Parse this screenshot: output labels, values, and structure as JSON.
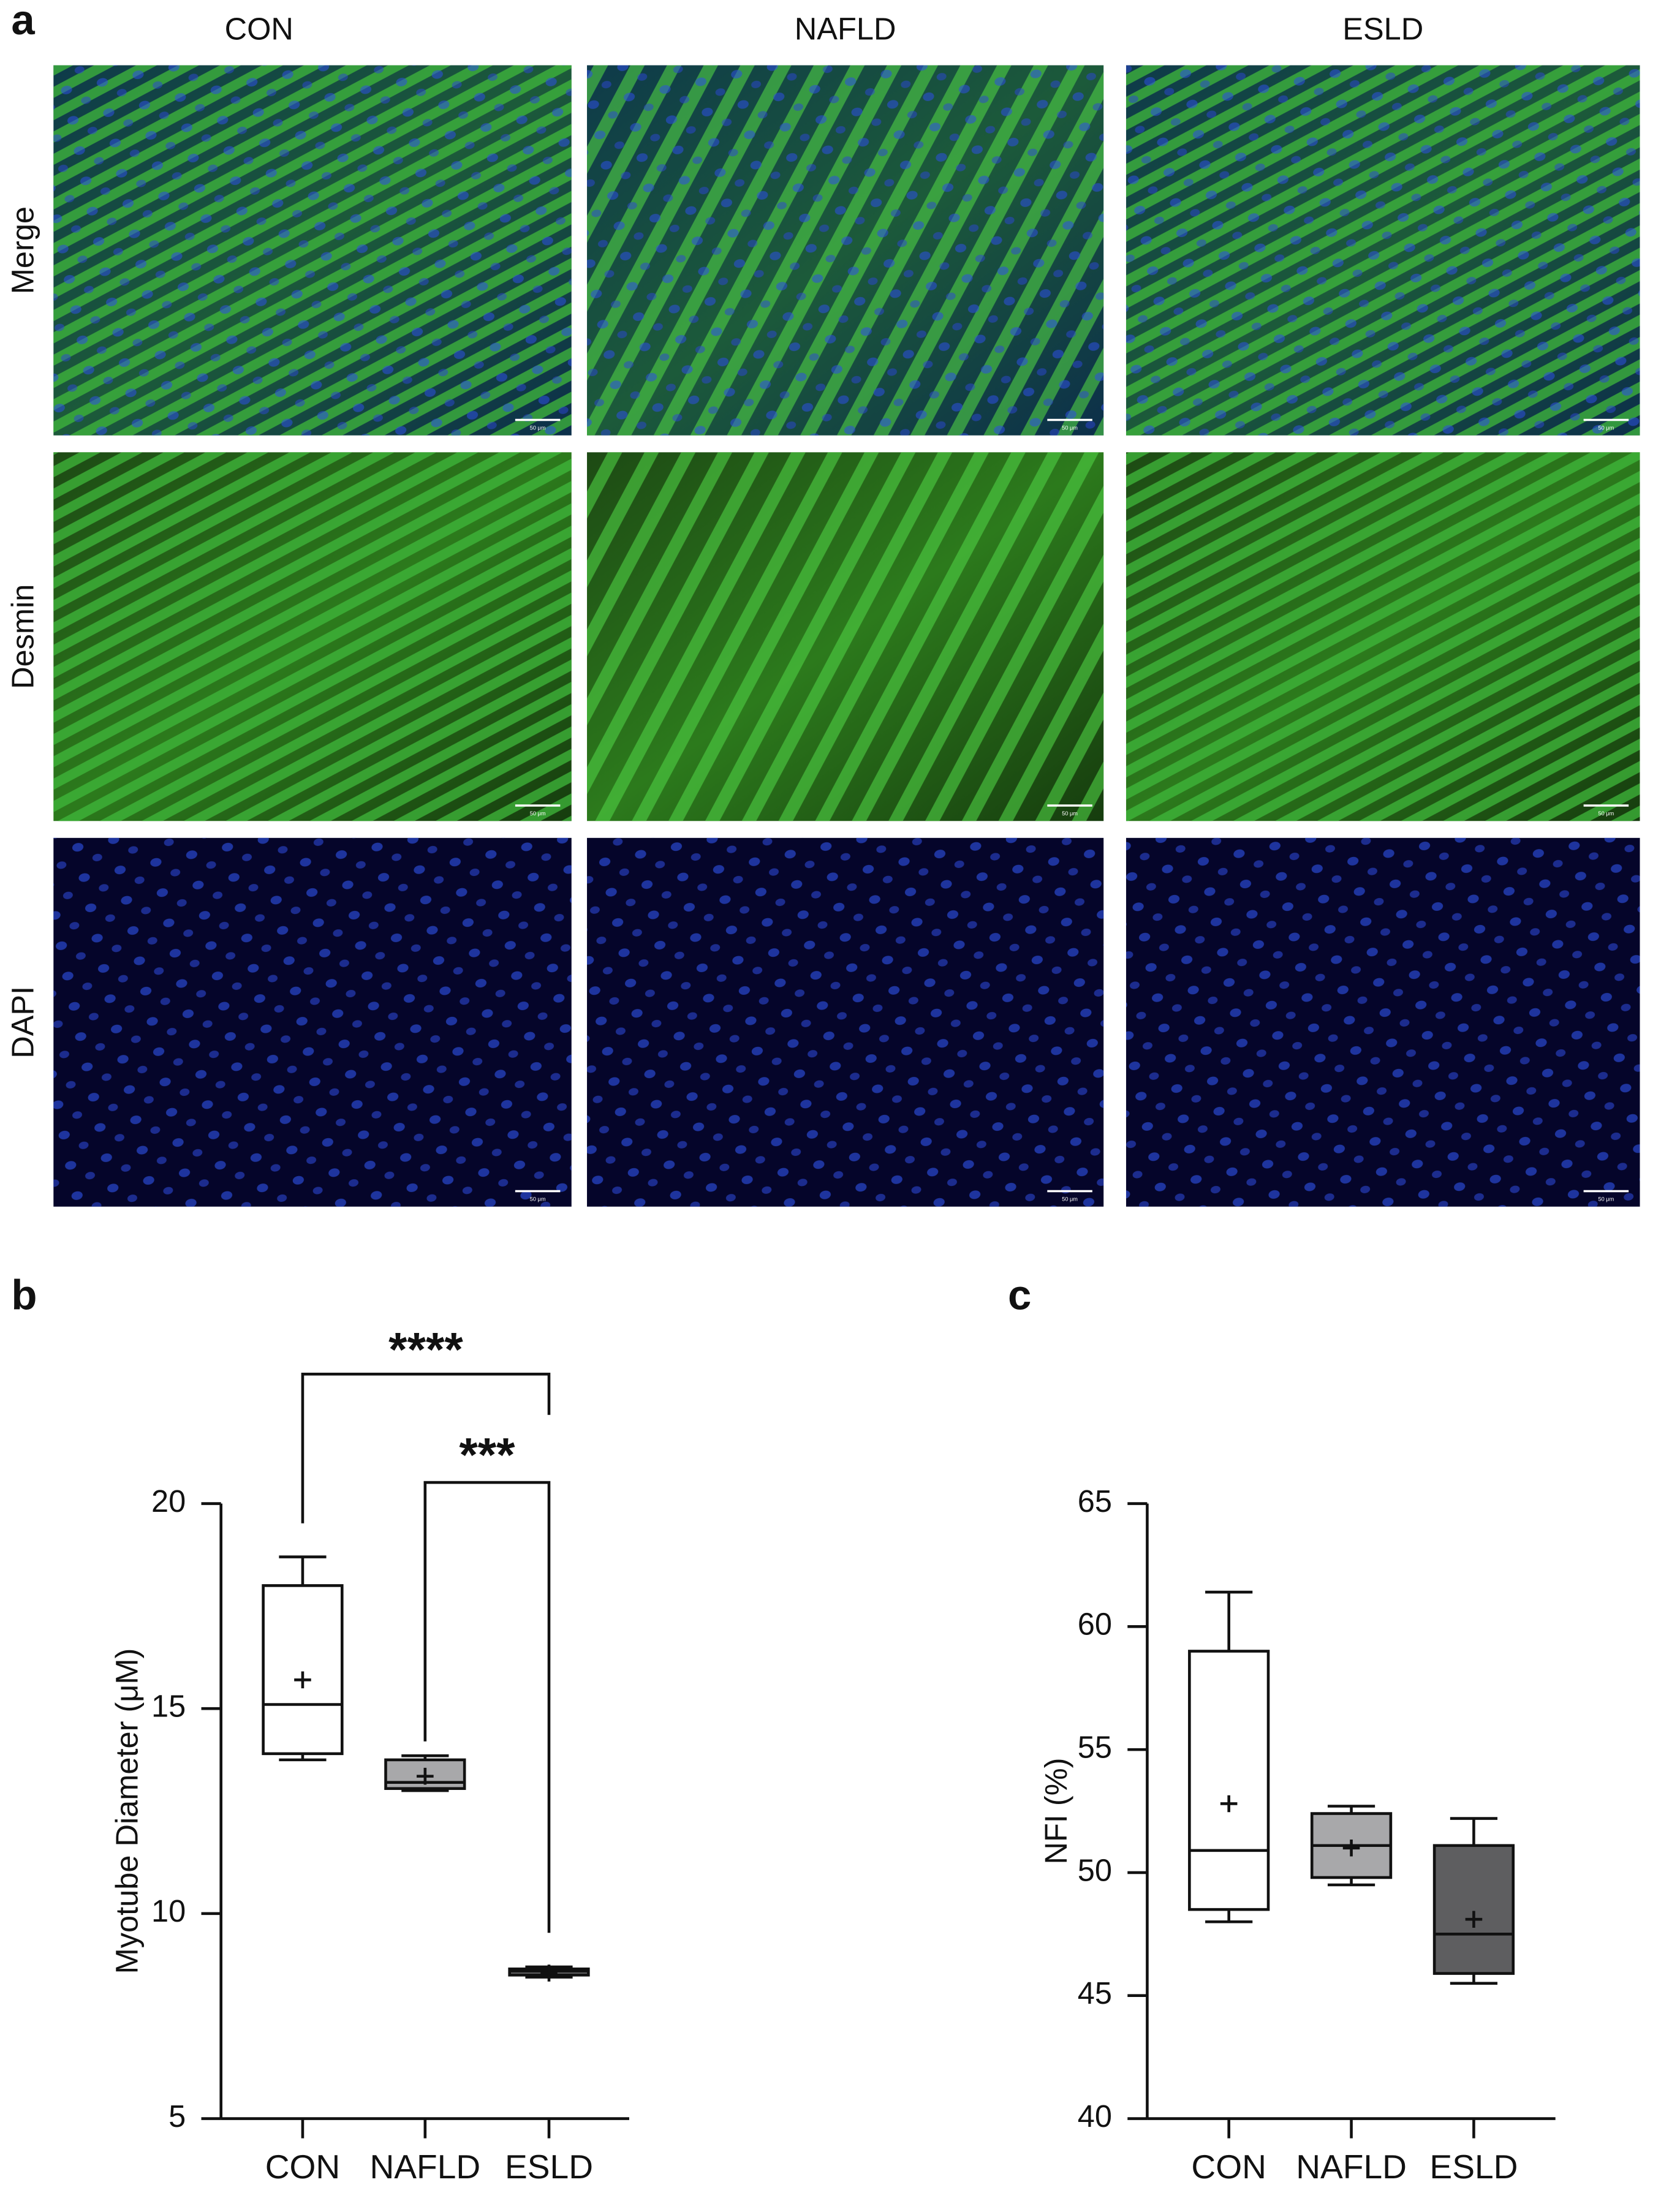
{
  "figure": {
    "panel_letters": [
      "a",
      "b",
      "c"
    ],
    "columns": [
      "CON",
      "NAFLD",
      "ESLD"
    ],
    "rows": [
      "Merge",
      "Desmin",
      "DAPI"
    ],
    "scale_bar_label": "50 μm"
  },
  "chart_data": [
    {
      "type": "box",
      "y_label": "Myotube Diameter (μM)",
      "categories": [
        "CON",
        "NAFLD",
        "ESLD"
      ],
      "boxes": [
        {
          "min": 13.75,
          "q1": 13.9,
          "median": 15.1,
          "q3": 18.0,
          "max": 18.7,
          "mean": 15.7,
          "color": "#ffffff"
        },
        {
          "min": 13.0,
          "q1": 13.05,
          "median": 13.2,
          "q3": 13.75,
          "max": 13.85,
          "mean": 13.35,
          "color": "#a8a8aa"
        },
        {
          "min": 8.45,
          "q1": 8.5,
          "median": 8.6,
          "q3": 8.65,
          "max": 8.7,
          "mean": 8.55,
          "color": "#5e5e60"
        }
      ],
      "ylim": [
        5,
        20
      ],
      "yticks": [
        5,
        10,
        15,
        20
      ],
      "comparisons": [
        {
          "groups": [
            0,
            2
          ],
          "label": "****"
        },
        {
          "groups": [
            1,
            2
          ],
          "label": "***"
        }
      ]
    },
    {
      "type": "box",
      "y_label": "NFI (%)",
      "categories": [
        "CON",
        "NAFLD",
        "ESLD"
      ],
      "boxes": [
        {
          "min": 48.0,
          "q1": 48.5,
          "median": 50.9,
          "q3": 59.0,
          "max": 61.4,
          "mean": 52.8,
          "color": "#ffffff"
        },
        {
          "min": 49.5,
          "q1": 49.8,
          "median": 51.1,
          "q3": 52.4,
          "max": 52.7,
          "mean": 51.0,
          "color": "#a8a8aa"
        },
        {
          "min": 45.5,
          "q1": 45.9,
          "median": 47.5,
          "q3": 51.1,
          "max": 52.2,
          "mean": 48.1,
          "color": "#5e5e60"
        }
      ],
      "ylim": [
        40,
        65
      ],
      "yticks": [
        40,
        45,
        50,
        55,
        60,
        65
      ]
    }
  ]
}
